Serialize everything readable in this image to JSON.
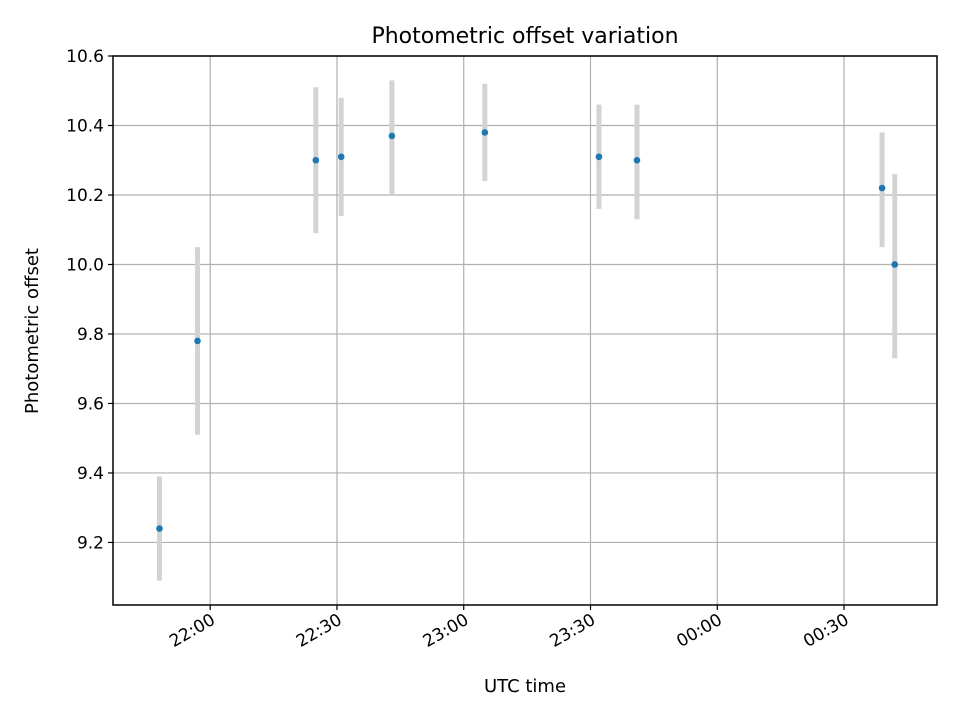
{
  "chart_data": {
    "type": "scatter",
    "title": "Photometric offset variation",
    "xlabel": "UTC time",
    "ylabel": "Photometric offset",
    "x_ticks": [
      "22:00",
      "22:30",
      "23:00",
      "23:30",
      "00:00",
      "00:30"
    ],
    "y_ticks": [
      "9.2",
      "9.4",
      "9.6",
      "9.8",
      "10.0",
      "10.2",
      "10.4",
      "10.6"
    ],
    "ylim": [
      9.02,
      10.6
    ],
    "grid": true,
    "marker_color": "#1f77b4",
    "errorbar_color": "#d3d3d3",
    "points": [
      {
        "x": "21:48",
        "y": 9.24,
        "yerr_low": 9.09,
        "yerr_high": 9.39
      },
      {
        "x": "21:57",
        "y": 9.78,
        "yerr_low": 9.51,
        "yerr_high": 10.05
      },
      {
        "x": "22:25",
        "y": 10.3,
        "yerr_low": 10.09,
        "yerr_high": 10.51
      },
      {
        "x": "22:31",
        "y": 10.31,
        "yerr_low": 10.14,
        "yerr_high": 10.48
      },
      {
        "x": "22:43",
        "y": 10.37,
        "yerr_low": 10.2,
        "yerr_high": 10.53
      },
      {
        "x": "23:05",
        "y": 10.38,
        "yerr_low": 10.24,
        "yerr_high": 10.52
      },
      {
        "x": "23:32",
        "y": 10.31,
        "yerr_low": 10.16,
        "yerr_high": 10.46
      },
      {
        "x": "23:41",
        "y": 10.3,
        "yerr_low": 10.13,
        "yerr_high": 10.46
      },
      {
        "x": "00:39",
        "y": 10.22,
        "yerr_low": 10.05,
        "yerr_high": 10.38
      },
      {
        "x": "00:42",
        "y": 10.0,
        "yerr_low": 9.73,
        "yerr_high": 10.26
      }
    ]
  }
}
